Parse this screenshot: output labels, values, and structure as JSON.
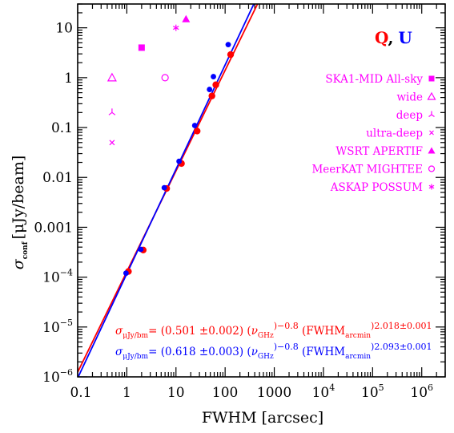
{
  "chart_data": {
    "type": "scatter",
    "xlabel": "FWHM [arcsec]",
    "ylabel_main": "σ",
    "ylabel_sub": "conf",
    "ylabel_unit": "[μJy/beam]",
    "x_scale": "log",
    "y_scale": "log",
    "xlim": [
      0.1,
      3000000
    ],
    "ylim": [
      1e-06,
      30
    ],
    "x_ticks": [
      {
        "value": 0.1,
        "base": "0.1",
        "exp": ""
      },
      {
        "value": 1,
        "base": "1",
        "exp": ""
      },
      {
        "value": 10,
        "base": "10",
        "exp": ""
      },
      {
        "value": 100,
        "base": "100",
        "exp": ""
      },
      {
        "value": 1000,
        "base": "1000",
        "exp": ""
      },
      {
        "value": 10000,
        "base": "10",
        "exp": "4"
      },
      {
        "value": 100000,
        "base": "10",
        "exp": "5"
      },
      {
        "value": 1000000,
        "base": "10",
        "exp": "6"
      }
    ],
    "y_ticks": [
      {
        "value": 10,
        "base": "10",
        "exp": ""
      },
      {
        "value": 1,
        "base": "1",
        "exp": ""
      },
      {
        "value": 0.1,
        "base": "0.1",
        "exp": ""
      },
      {
        "value": 0.01,
        "base": "0.01",
        "exp": ""
      },
      {
        "value": 0.001,
        "base": "0.001",
        "exp": ""
      },
      {
        "value": 0.0001,
        "base": "10",
        "exp": "−4"
      },
      {
        "value": 1e-05,
        "base": "10",
        "exp": "−5"
      },
      {
        "value": 1e-06,
        "base": "10",
        "exp": "−6"
      }
    ],
    "series": [
      {
        "name": "Q",
        "color": "#ff0000",
        "x": [
          1,
          2,
          6,
          12,
          25,
          50,
          60,
          120
        ],
        "y": [
          0.00013,
          0.00035,
          0.006,
          0.019,
          0.085,
          0.43,
          0.72,
          2.9
        ]
      },
      {
        "name": "U",
        "color": "#0000ff",
        "x": [
          1,
          2,
          6,
          12,
          25,
          50,
          60,
          120
        ],
        "y": [
          0.00012,
          0.00036,
          0.0062,
          0.021,
          0.11,
          0.58,
          1.05,
          4.6
        ]
      }
    ],
    "fit_lines": [
      {
        "series": "Q",
        "color": "#ff0000",
        "coef": 0.501,
        "slope": 2.018
      },
      {
        "series": "U",
        "color": "#0000ff",
        "coef": 0.618,
        "slope": 2.093
      }
    ],
    "surveys": [
      {
        "label": "SKA1-MID All-sky",
        "symbol": "filled-square",
        "x": 2,
        "y": 4
      },
      {
        "label": "wide",
        "symbol": "open-triangle",
        "x": 0.5,
        "y": 1
      },
      {
        "label": "deep",
        "symbol": "tripod",
        "x": 0.5,
        "y": 0.2
      },
      {
        "label": "ultra-deep",
        "symbol": "cross",
        "x": 0.5,
        "y": 0.05
      },
      {
        "label": "WSRT APERTIF",
        "symbol": "filled-triangle",
        "x": 16,
        "y": 15
      },
      {
        "label": "MeerKAT MIGHTEE",
        "symbol": "open-circle",
        "x": 6,
        "y": 1
      },
      {
        "label": "ASKAP POSSUM",
        "symbol": "asterisk",
        "x": 10,
        "y": 10
      }
    ],
    "survey_color": "#ff00ff",
    "legend_position": "right",
    "qu_label": {
      "q": "Q",
      "sep": ",",
      "u": "U"
    },
    "fit_labels": [
      {
        "color": "#ff0000",
        "sigma": "σ",
        "sigma_sub": "μJy/bm",
        "eq": "= (0.501 ±0.002) (",
        "nu": "ν",
        "nu_sub": "GHz",
        "nu_exp": ")−0.8",
        "fwhm": " (FWHM",
        "fwhm_sub": "arcmin",
        "fwhm_exp": ")2.018±0.001"
      },
      {
        "color": "#0000ff",
        "sigma": "σ",
        "sigma_sub": "μJy/bm",
        "eq": "= (0.618 ±0.003) (",
        "nu": "ν",
        "nu_sub": "GHz",
        "nu_exp": ")−0.8",
        "fwhm": " (FWHM",
        "fwhm_sub": "arcmin",
        "fwhm_exp": ")2.093±0.001"
      }
    ]
  }
}
